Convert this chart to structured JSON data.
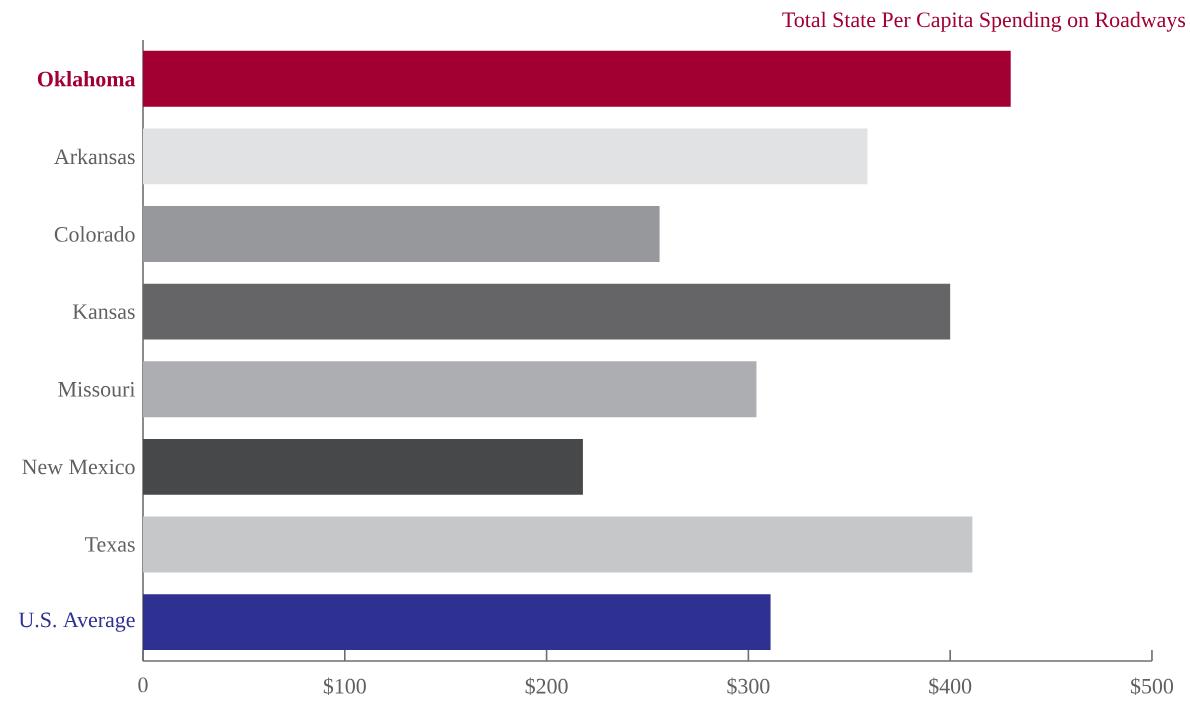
{
  "chart_data": {
    "type": "bar",
    "orientation": "horizontal",
    "title": "Total State Per Capita Spending on Roadways",
    "categories": [
      "Oklahoma",
      "Arkansas",
      "Colorado",
      "Kansas",
      "Missouri",
      "New Mexico",
      "Texas",
      "U.S. Average"
    ],
    "values": [
      430,
      359,
      256,
      400,
      304,
      218,
      411,
      311
    ],
    "colors": [
      "#a20033",
      "#e1e2e4",
      "#97989c",
      "#656567",
      "#adaeb1",
      "#47484a",
      "#c6c7c9",
      "#2e3192"
    ],
    "xlim": [
      0,
      500
    ],
    "xticks": [
      0,
      {
        "value": 100,
        "label": "$100"
      },
      {
        "value": 200,
        "label": "$200"
      },
      {
        "value": 300,
        "label": "$300"
      },
      {
        "value": 400,
        "label": "$400"
      },
      {
        "value": 500,
        "label": "$500"
      }
    ]
  }
}
